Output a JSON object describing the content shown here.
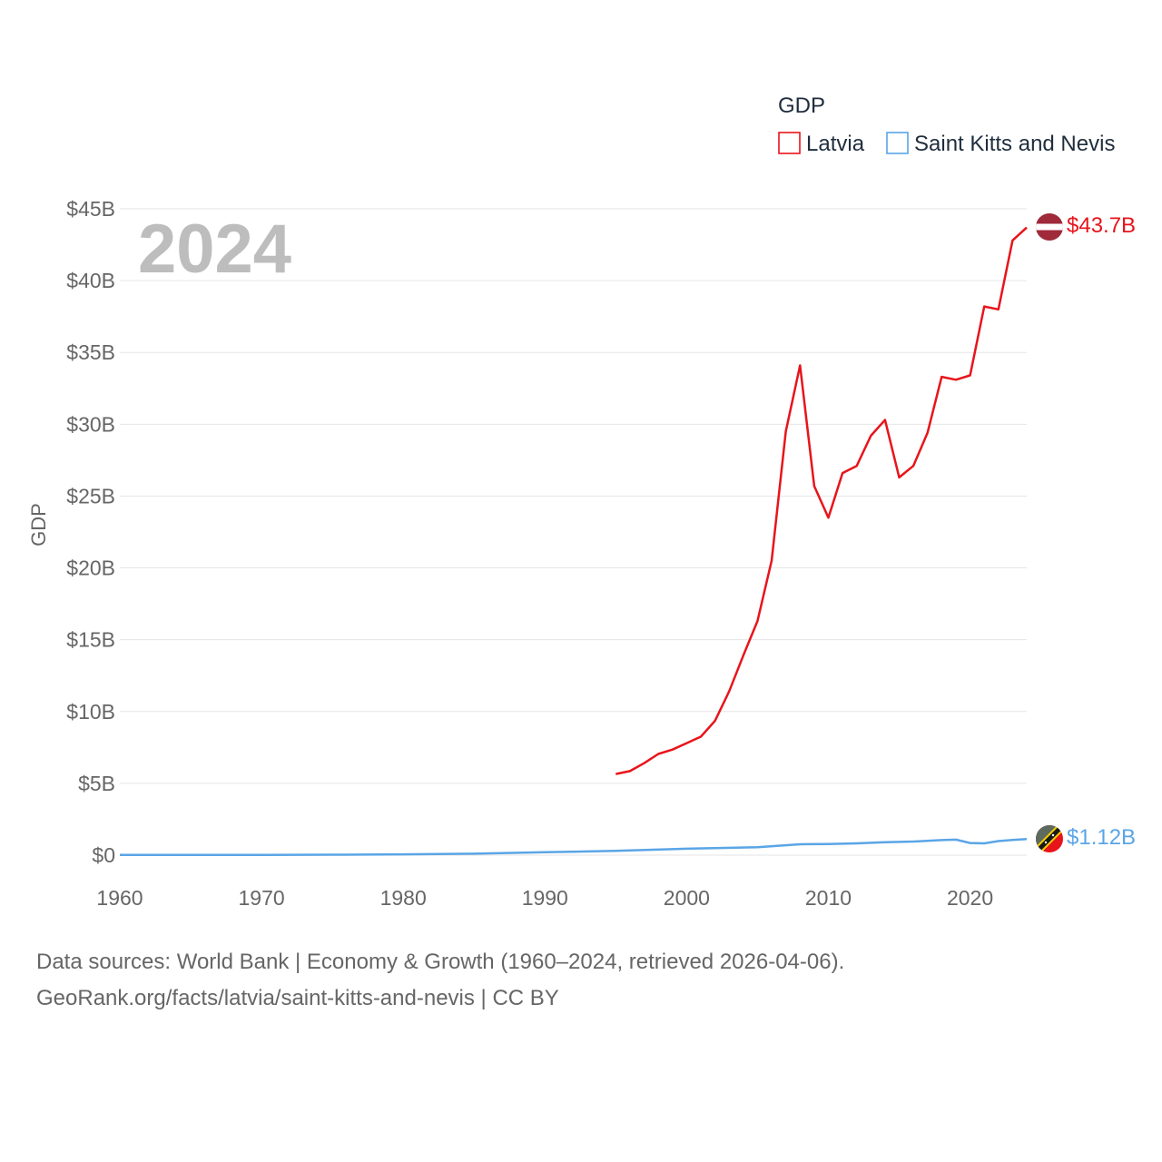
{
  "legend": {
    "title": "GDP"
  },
  "year_label": "2024",
  "footer": {
    "line1": "Data sources: World Bank | Economy & Growth (1960–2024, retrieved 2026-04-06).",
    "line2": "GeoRank.org/facts/latvia/saint-kitts-and-nevis | CC BY"
  },
  "chart_data": {
    "type": "line",
    "title": "",
    "xlabel": "",
    "ylabel": "GDP",
    "xlim": [
      1960,
      2024
    ],
    "ylim": [
      0,
      45
    ],
    "x_ticks": [
      1960,
      1970,
      1980,
      1990,
      2000,
      2010,
      2020
    ],
    "y_ticks": [
      0,
      5,
      10,
      15,
      20,
      25,
      30,
      35,
      40,
      45
    ],
    "y_tick_labels": [
      "$0",
      "$5B",
      "$10B",
      "$15B",
      "$20B",
      "$25B",
      "$30B",
      "$35B",
      "$40B",
      "$45B"
    ],
    "unit": "billion USD",
    "series": [
      {
        "name": "Latvia",
        "color": "#e8141b",
        "end_label": "$43.7B",
        "x": [
          1995,
          1996,
          1997,
          1998,
          1999,
          2000,
          2001,
          2002,
          2003,
          2004,
          2005,
          2006,
          2007,
          2008,
          2009,
          2010,
          2011,
          2012,
          2013,
          2014,
          2015,
          2016,
          2017,
          2018,
          2019,
          2020,
          2021,
          2022,
          2023,
          2024
        ],
        "values": [
          5.65,
          5.85,
          6.4,
          7.05,
          7.35,
          7.8,
          8.25,
          9.35,
          11.4,
          13.9,
          16.3,
          20.5,
          29.5,
          34.1,
          25.7,
          23.5,
          26.6,
          27.1,
          29.2,
          30.3,
          26.3,
          27.1,
          29.4,
          33.3,
          33.1,
          33.4,
          38.2,
          38.0,
          42.8,
          43.7
        ]
      },
      {
        "name": "Saint Kitts and Nevis",
        "color": "#5aa5e6",
        "end_label": "$1.12B",
        "x": [
          1960,
          1965,
          1970,
          1975,
          1977,
          1980,
          1985,
          1990,
          1995,
          2000,
          2005,
          2008,
          2010,
          2012,
          2014,
          2016,
          2018,
          2019,
          2020,
          2021,
          2022,
          2023,
          2024
        ],
        "values": [
          0.01,
          0.01,
          0.02,
          0.03,
          0.04,
          0.06,
          0.1,
          0.2,
          0.3,
          0.45,
          0.55,
          0.76,
          0.78,
          0.82,
          0.9,
          0.95,
          1.05,
          1.08,
          0.85,
          0.82,
          0.98,
          1.06,
          1.12
        ]
      }
    ]
  }
}
